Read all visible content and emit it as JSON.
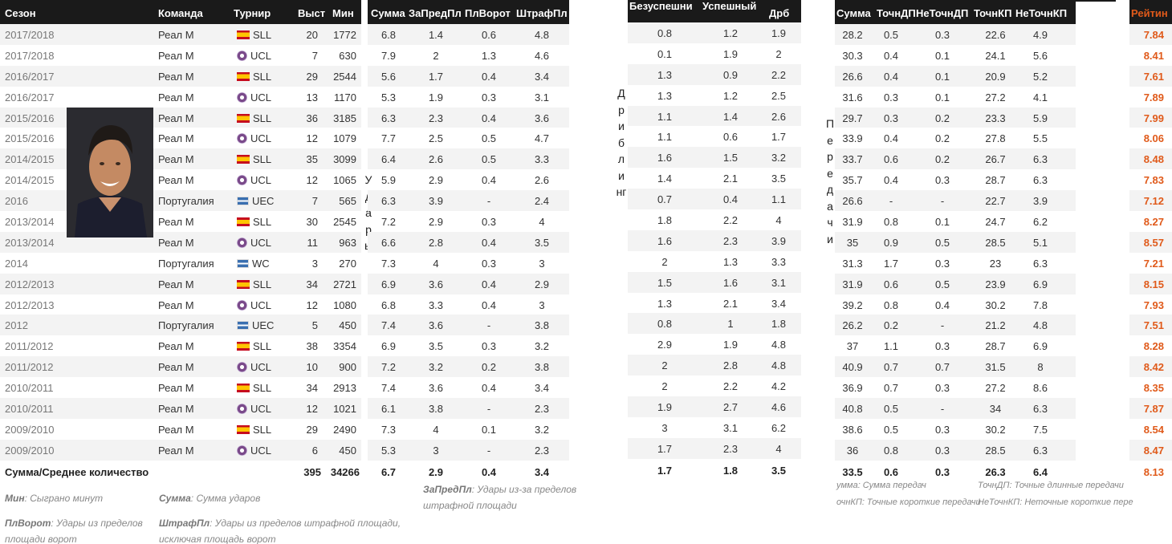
{
  "main_table": {
    "headers": {
      "season": "Сезон",
      "team": "Команда",
      "tournament": "Турнир",
      "apps": "Выст",
      "mins": "Мин"
    },
    "rows": [
      {
        "season": "2017/2018",
        "team": "Реал М",
        "flag": "spain",
        "tournament": "SLL",
        "apps": "20",
        "mins": "1772"
      },
      {
        "season": "2017/2018",
        "team": "Реал М",
        "flag": "ucl",
        "tournament": "UCL",
        "apps": "7",
        "mins": "630"
      },
      {
        "season": "2016/2017",
        "team": "Реал М",
        "flag": "spain",
        "tournament": "SLL",
        "apps": "29",
        "mins": "2544"
      },
      {
        "season": "2016/2017",
        "team": "Реал М",
        "flag": "ucl",
        "tournament": "UCL",
        "apps": "13",
        "mins": "1170"
      },
      {
        "season": "2015/2016",
        "team": "Реал М",
        "flag": "spain",
        "tournament": "SLL",
        "apps": "36",
        "mins": "3185"
      },
      {
        "season": "2015/2016",
        "team": "Реал М",
        "flag": "ucl",
        "tournament": "UCL",
        "apps": "12",
        "mins": "1079"
      },
      {
        "season": "2014/2015",
        "team": "Реал М",
        "flag": "spain",
        "tournament": "SLL",
        "apps": "35",
        "mins": "3099"
      },
      {
        "season": "2014/2015",
        "team": "Реал М",
        "flag": "ucl",
        "tournament": "UCL",
        "apps": "12",
        "mins": "1065"
      },
      {
        "season": "2016",
        "team": "Португалия",
        "flag": "int",
        "tournament": "UEC",
        "apps": "7",
        "mins": "565"
      },
      {
        "season": "2013/2014",
        "team": "Реал М",
        "flag": "spain",
        "tournament": "SLL",
        "apps": "30",
        "mins": "2545"
      },
      {
        "season": "2013/2014",
        "team": "Реал М",
        "flag": "ucl",
        "tournament": "UCL",
        "apps": "11",
        "mins": "963"
      },
      {
        "season": "2014",
        "team": "Португалия",
        "flag": "int",
        "tournament": "WC",
        "apps": "3",
        "mins": "270"
      },
      {
        "season": "2012/2013",
        "team": "Реал М",
        "flag": "spain",
        "tournament": "SLL",
        "apps": "34",
        "mins": "2721"
      },
      {
        "season": "2012/2013",
        "team": "Реал М",
        "flag": "ucl",
        "tournament": "UCL",
        "apps": "12",
        "mins": "1080"
      },
      {
        "season": "2012",
        "team": "Португалия",
        "flag": "int",
        "tournament": "UEC",
        "apps": "5",
        "mins": "450"
      },
      {
        "season": "2011/2012",
        "team": "Реал М",
        "flag": "spain",
        "tournament": "SLL",
        "apps": "38",
        "mins": "3354"
      },
      {
        "season": "2011/2012",
        "team": "Реал М",
        "flag": "ucl",
        "tournament": "UCL",
        "apps": "10",
        "mins": "900"
      },
      {
        "season": "2010/2011",
        "team": "Реал М",
        "flag": "spain",
        "tournament": "SLL",
        "apps": "34",
        "mins": "2913"
      },
      {
        "season": "2010/2011",
        "team": "Реал М",
        "flag": "ucl",
        "tournament": "UCL",
        "apps": "12",
        "mins": "1021"
      },
      {
        "season": "2009/2010",
        "team": "Реал М",
        "flag": "spain",
        "tournament": "SLL",
        "apps": "29",
        "mins": "2490"
      },
      {
        "season": "2009/2010",
        "team": "Реал М",
        "flag": "ucl",
        "tournament": "UCL",
        "apps": "6",
        "mins": "450"
      }
    ],
    "total": {
      "label": "Сумма/Среднее количество",
      "apps": "395",
      "mins": "34266"
    }
  },
  "shots_table": {
    "side_label": "Удары",
    "headers": {
      "total": "Сумма",
      "out_box": "ЗаПредПл",
      "six_yard": "ПлВорот",
      "pen_area": "ШтрафПл"
    },
    "rows": [
      [
        "6.8",
        "1.4",
        "0.6",
        "4.8"
      ],
      [
        "7.9",
        "2",
        "1.3",
        "4.6"
      ],
      [
        "5.6",
        "1.7",
        "0.4",
        "3.4"
      ],
      [
        "5.3",
        "1.9",
        "0.3",
        "3.1"
      ],
      [
        "6.3",
        "2.3",
        "0.4",
        "3.6"
      ],
      [
        "7.7",
        "2.5",
        "0.5",
        "4.7"
      ],
      [
        "6.4",
        "2.6",
        "0.5",
        "3.3"
      ],
      [
        "5.9",
        "2.9",
        "0.4",
        "2.6"
      ],
      [
        "6.3",
        "3.9",
        "-",
        "2.4"
      ],
      [
        "7.2",
        "2.9",
        "0.3",
        "4"
      ],
      [
        "6.6",
        "2.8",
        "0.4",
        "3.5"
      ],
      [
        "7.3",
        "4",
        "0.3",
        "3"
      ],
      [
        "6.9",
        "3.6",
        "0.4",
        "2.9"
      ],
      [
        "6.8",
        "3.3",
        "0.4",
        "3"
      ],
      [
        "7.4",
        "3.6",
        "-",
        "3.8"
      ],
      [
        "6.9",
        "3.5",
        "0.3",
        "3.2"
      ],
      [
        "7.2",
        "3.2",
        "0.2",
        "3.8"
      ],
      [
        "7.4",
        "3.6",
        "0.4",
        "3.4"
      ],
      [
        "6.1",
        "3.8",
        "-",
        "2.3"
      ],
      [
        "7.3",
        "4",
        "0.1",
        "3.2"
      ],
      [
        "5.3",
        "3",
        "-",
        "2.3"
      ]
    ],
    "total": [
      "6.7",
      "2.9",
      "0.4",
      "3.4"
    ]
  },
  "dribble_table": {
    "side_label": "Дриблинг",
    "headers": {
      "unsuccessful": "Безуспешни",
      "successful": "Успешный",
      "total": "Дрб"
    },
    "rows": [
      [
        "0.8",
        "1.2",
        "1.9"
      ],
      [
        "0.1",
        "1.9",
        "2"
      ],
      [
        "1.3",
        "0.9",
        "2.2"
      ],
      [
        "1.3",
        "1.2",
        "2.5"
      ],
      [
        "1.1",
        "1.4",
        "2.6"
      ],
      [
        "1.1",
        "0.6",
        "1.7"
      ],
      [
        "1.6",
        "1.5",
        "3.2"
      ],
      [
        "1.4",
        "2.1",
        "3.5"
      ],
      [
        "0.7",
        "0.4",
        "1.1"
      ],
      [
        "1.8",
        "2.2",
        "4"
      ],
      [
        "1.6",
        "2.3",
        "3.9"
      ],
      [
        "2",
        "1.3",
        "3.3"
      ],
      [
        "1.5",
        "1.6",
        "3.1"
      ],
      [
        "1.3",
        "2.1",
        "3.4"
      ],
      [
        "0.8",
        "1",
        "1.8"
      ],
      [
        "2.9",
        "1.9",
        "4.8"
      ],
      [
        "2",
        "2.8",
        "4.8"
      ],
      [
        "2",
        "2.2",
        "4.2"
      ],
      [
        "1.9",
        "2.7",
        "4.6"
      ],
      [
        "3",
        "3.1",
        "6.2"
      ],
      [
        "1.7",
        "2.3",
        "4"
      ]
    ],
    "total": [
      "1.7",
      "1.8",
      "3.5"
    ]
  },
  "pass_table": {
    "side_label": "Передачи",
    "headers": {
      "total": "Сумма",
      "acc_lb": "ТочнДП",
      "inacc_lb": "НеТочнДП",
      "acc_sp": "ТочнКП",
      "inacc_sp": "НеТочнКП"
    },
    "rows": [
      [
        "28.2",
        "0.5",
        "0.3",
        "22.6",
        "4.9"
      ],
      [
        "30.3",
        "0.4",
        "0.1",
        "24.1",
        "5.6"
      ],
      [
        "26.6",
        "0.4",
        "0.1",
        "20.9",
        "5.2"
      ],
      [
        "31.6",
        "0.3",
        "0.1",
        "27.2",
        "4.1"
      ],
      [
        "29.7",
        "0.3",
        "0.2",
        "23.3",
        "5.9"
      ],
      [
        "33.9",
        "0.4",
        "0.2",
        "27.8",
        "5.5"
      ],
      [
        "33.7",
        "0.6",
        "0.2",
        "26.7",
        "6.3"
      ],
      [
        "35.7",
        "0.4",
        "0.3",
        "28.7",
        "6.3"
      ],
      [
        "26.6",
        "-",
        "-",
        "22.7",
        "3.9"
      ],
      [
        "31.9",
        "0.8",
        "0.1",
        "24.7",
        "6.2"
      ],
      [
        "35",
        "0.9",
        "0.5",
        "28.5",
        "5.1"
      ],
      [
        "31.3",
        "1.7",
        "0.3",
        "23",
        "6.3"
      ],
      [
        "31.9",
        "0.6",
        "0.5",
        "23.9",
        "6.9"
      ],
      [
        "39.2",
        "0.8",
        "0.4",
        "30.2",
        "7.8"
      ],
      [
        "26.2",
        "0.2",
        "-",
        "21.2",
        "4.8"
      ],
      [
        "37",
        "1.1",
        "0.3",
        "28.7",
        "6.9"
      ],
      [
        "40.9",
        "0.7",
        "0.7",
        "31.5",
        "8"
      ],
      [
        "36.9",
        "0.7",
        "0.3",
        "27.2",
        "8.6"
      ],
      [
        "40.8",
        "0.5",
        "-",
        "34",
        "6.3"
      ],
      [
        "38.6",
        "0.5",
        "0.3",
        "30.2",
        "7.5"
      ],
      [
        "36",
        "0.8",
        "0.3",
        "28.5",
        "6.3"
      ]
    ],
    "total": [
      "33.5",
      "0.6",
      "0.3",
      "26.3",
      "6.4"
    ]
  },
  "rating_table": {
    "header": "Рейтин",
    "values": [
      "7.84",
      "8.41",
      "7.61",
      "7.89",
      "7.99",
      "8.06",
      "8.48",
      "7.83",
      "7.12",
      "8.27",
      "8.57",
      "7.21",
      "8.15",
      "7.93",
      "7.51",
      "8.28",
      "8.42",
      "8.35",
      "7.87",
      "8.54",
      "8.47"
    ],
    "total": "8.13"
  },
  "legends": {
    "mins_term": "Мин",
    "mins_desc": ": Сыграно минут",
    "total_term": "Сумма",
    "total_desc": ": Сумма ударов",
    "six_term": "ПлВорот",
    "six_desc_1": ": Удары из пределов",
    "six_desc_2": "площади ворот",
    "pen_term": "ШтрафПл",
    "pen_desc_1": ": Удары из пределов штрафной площади,",
    "pen_desc_2": "исключая площадь ворот",
    "out_term": "ЗаПредПл",
    "out_desc_1": ": Удары из-за пределов",
    "out_desc_2": "штрафной площади",
    "pass_total": "умма: Сумма передач",
    "pass_acc_lb": "ТочнДП: Точные длинные передачи",
    "pass_acc_sp": "очнКП: Точные короткие передачи",
    "pass_inacc_sp": "НеТочнКП: Неточные короткие пере"
  },
  "colors": {
    "header_bg": "#1a1a1a",
    "stripe": "#f3f3f3",
    "rating": "#e05a1a"
  }
}
